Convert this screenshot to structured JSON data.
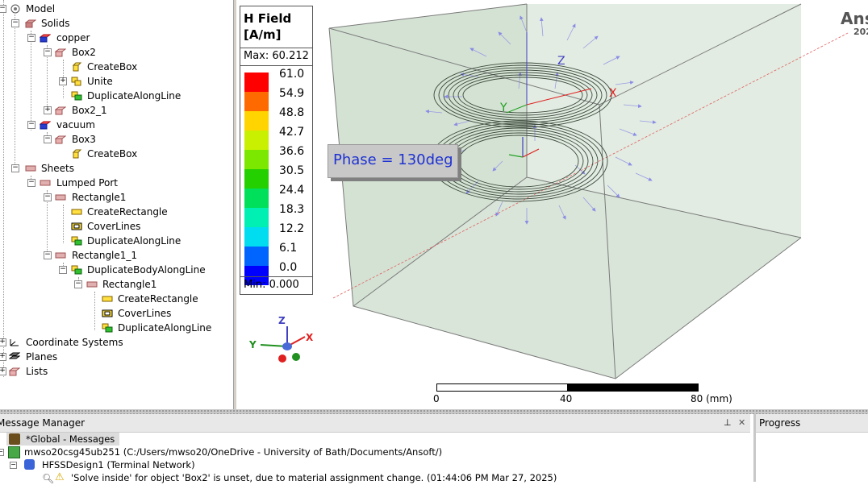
{
  "tree": {
    "items": [
      {
        "label": "Model",
        "icon": "model-icon"
      },
      {
        "label": "Solids",
        "icon": "solids-icon"
      },
      {
        "label": "copper",
        "icon": "material-icon"
      },
      {
        "label": "Box2",
        "icon": "box-icon"
      },
      {
        "label": "CreateBox",
        "icon": "createbox-icon"
      },
      {
        "label": "Unite",
        "icon": "unite-icon"
      },
      {
        "label": "DuplicateAlongLine",
        "icon": "duplicate-icon"
      },
      {
        "label": "Box2_1",
        "icon": "box-icon"
      },
      {
        "label": "vacuum",
        "icon": "material-icon"
      },
      {
        "label": "Box3",
        "icon": "box-icon"
      },
      {
        "label": "CreateBox",
        "icon": "createbox-icon"
      },
      {
        "label": "Sheets",
        "icon": "sheets-icon"
      },
      {
        "label": "Lumped Port",
        "icon": "sheet-icon"
      },
      {
        "label": "Rectangle1",
        "icon": "sheet-icon"
      },
      {
        "label": "CreateRectangle",
        "icon": "rect-icon"
      },
      {
        "label": "CoverLines",
        "icon": "cover-icon"
      },
      {
        "label": "DuplicateAlongLine",
        "icon": "duplicate-icon"
      },
      {
        "label": "Rectangle1_1",
        "icon": "sheet-icon"
      },
      {
        "label": "DuplicateBodyAlongLine",
        "icon": "duplicate-icon"
      },
      {
        "label": "Rectangle1",
        "icon": "sheet-icon"
      },
      {
        "label": "CreateRectangle",
        "icon": "rect-icon"
      },
      {
        "label": "CoverLines",
        "icon": "cover-icon"
      },
      {
        "label": "DuplicateAlongLine",
        "icon": "duplicate-icon"
      },
      {
        "label": "Coordinate Systems",
        "icon": "coordinate-icon"
      },
      {
        "label": "Planes",
        "icon": "planes-icon"
      },
      {
        "label": "Lists",
        "icon": "lists-icon"
      }
    ]
  },
  "legend": {
    "title1": "H Field",
    "title2": "[A/m]",
    "max": "Max: 60.212",
    "min": "Min:  0.000",
    "levels": [
      "61.0",
      "54.9",
      "48.8",
      "42.7",
      "36.6",
      "30.5",
      "24.4",
      "18.3",
      "12.2",
      "6.1",
      "0.0"
    ],
    "colors": [
      "#ff0000",
      "#ff6a00",
      "#ffd400",
      "#c8f000",
      "#7ce800",
      "#24d000",
      "#00e05a",
      "#00f0b4",
      "#00dcf0",
      "#0064ff",
      "#0000ff"
    ]
  },
  "view": {
    "phase": "Phase = 130deg",
    "brand": "Ans",
    "brand_year": "202",
    "ruler": {
      "t0": "0",
      "t1": "40",
      "t2": "80 (mm)"
    },
    "axes": {
      "x": "X",
      "y": "Y",
      "z": "Z"
    }
  },
  "messages": {
    "title": "Message Manager",
    "pin": "⊥",
    "close": "✕",
    "rows": [
      "*Global - Messages",
      "mwso20csg45ub251 (C:/Users/mwso20/OneDrive - University of Bath/Documents/Ansoft/)",
      "HFSSDesign1 (Terminal Network)",
      "'Solve inside' for object 'Box2' is unset, due to material assignment change. (01:44:06 PM  Mar 27, 2025)"
    ]
  },
  "progress": {
    "title": "Progress"
  }
}
